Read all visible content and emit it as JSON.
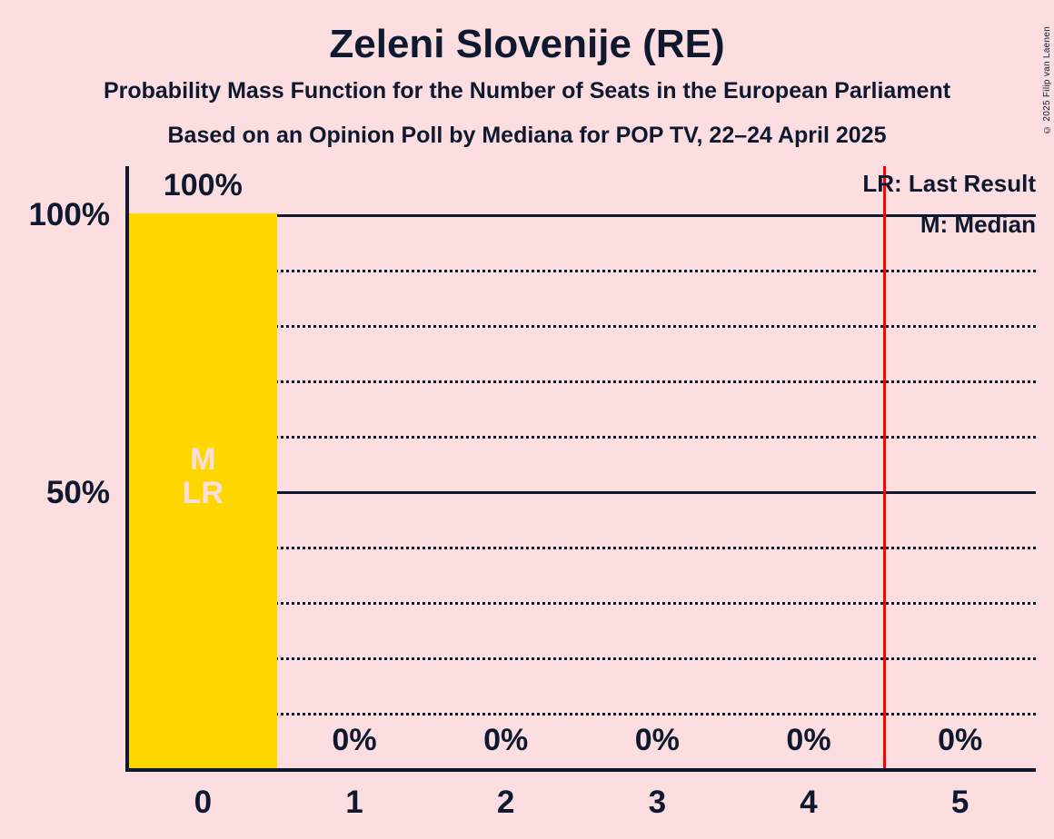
{
  "chart_data": {
    "type": "bar",
    "title": "Zeleni Slovenije (RE)",
    "subtitle": "Probability Mass Function for the Number of Seats in the European Parliament",
    "source_line": "Based on an Opinion Poll by Mediana for POP TV, 22–24 April 2025",
    "copyright": "© 2025 Filip van Laenen",
    "legend": {
      "lr": "LR: Last Result",
      "m": "M: Median"
    },
    "xlabel": "",
    "ylabel": "",
    "categories": [
      "0",
      "1",
      "2",
      "3",
      "4",
      "5"
    ],
    "values": [
      100,
      0,
      0,
      0,
      0,
      0
    ],
    "bar_value_labels": [
      "100%",
      "0%",
      "0%",
      "0%",
      "0%",
      "0%"
    ],
    "y_axis": {
      "tick_labels": [
        "100%",
        "50%"
      ],
      "tick_values": [
        100,
        50
      ],
      "ylim": [
        0,
        100
      ],
      "gridline_step_pct": 10,
      "solid_gridlines_pct": [
        50,
        100
      ],
      "grid": "on"
    },
    "bar_annotations": {
      "bar_index": 0,
      "lines": [
        "M",
        "LR"
      ]
    },
    "majority_threshold_seats": 4.5,
    "legend_position": "top-right",
    "colors": {
      "background": "#FCDEE1",
      "bar": "#FFD700",
      "text": "#0E1930",
      "majority_line": "#FF0000",
      "bar_annotation_text": "#FCDEE1"
    }
  }
}
